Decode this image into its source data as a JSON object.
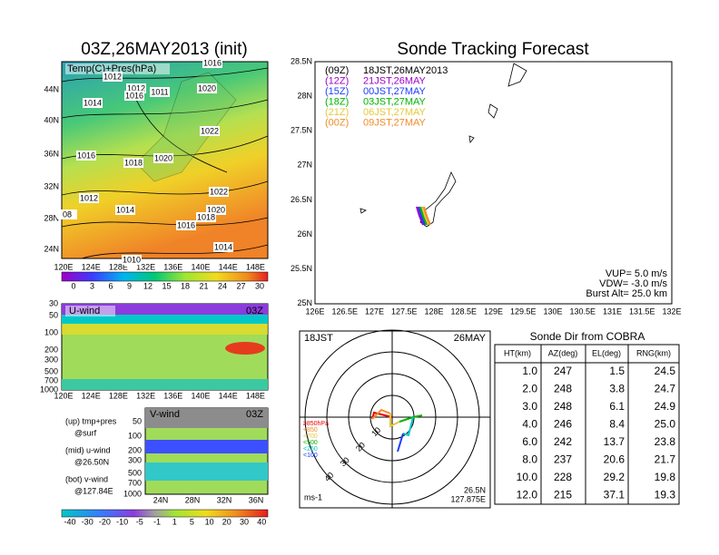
{
  "left": {
    "title": "03Z,26MAY2013 (init)",
    "overlay": "Temp(C)+Pres(hPa)",
    "lat_labels": [
      "44N",
      "40N",
      "36N",
      "32N",
      "28N",
      "24N"
    ],
    "lon_labels": [
      "120E",
      "124E",
      "128E",
      "132E",
      "136E",
      "140E",
      "144E",
      "148E"
    ],
    "colorbar": [
      "0",
      "3",
      "6",
      "9",
      "12",
      "15",
      "18",
      "21",
      "24",
      "27",
      "30"
    ],
    "isobars": [
      "1016",
      "1012",
      "1012",
      "1011",
      "1016",
      "1020",
      "1014",
      "1022",
      "1016",
      "1018",
      "1020",
      "1012",
      "1022",
      "1020",
      "1014",
      "1018",
      "1016",
      "08",
      "1014",
      "1010"
    ]
  },
  "u_wind": {
    "name": "U-wind",
    "time": "03Z",
    "levels": [
      "30",
      "50",
      "100",
      "200",
      "300",
      "500",
      "700",
      "1000"
    ],
    "lon_labels": [
      "120E",
      "124E",
      "128E",
      "132E",
      "136E",
      "140E",
      "144E",
      "148E"
    ]
  },
  "v_wind": {
    "name": "V-wind",
    "time": "03Z",
    "levels": [
      "50",
      "100",
      "200",
      "300",
      "500",
      "700",
      "1000"
    ],
    "lat_labels": [
      "24N",
      "28N",
      "32N",
      "36N"
    ]
  },
  "notes": [
    "(up) tmp+pres",
    "@surf",
    "(mid) u-wind",
    "@26.50N",
    "(bot) v-wind",
    "@127.84E"
  ],
  "wind_colorbar": [
    "-40",
    "-30",
    "-20",
    "-10",
    "-5",
    "-1",
    "1",
    "5",
    "10",
    "20",
    "30",
    "40"
  ],
  "tracking": {
    "title": "Sonde Tracking Forecast",
    "lat_labels": [
      "28.5N",
      "28N",
      "27.5N",
      "27N",
      "26.5N",
      "26N",
      "25.5N",
      "25N"
    ],
    "lon_labels": [
      "126E",
      "126.5E",
      "127E",
      "127.5E",
      "128E",
      "128.5E",
      "129E",
      "129.5E",
      "130E",
      "130.5E",
      "131E",
      "131.5E",
      "132E"
    ],
    "legend": [
      {
        "code": "(09Z)",
        "text": "18JST,26MAY2013",
        "color": "#000000"
      },
      {
        "code": "(12Z)",
        "text": "21JST,26MAY",
        "color": "#a000c8"
      },
      {
        "code": "(15Z)",
        "text": "00JST,27MAY",
        "color": "#1e3cff"
      },
      {
        "code": "(18Z)",
        "text": "03JST,27MAY",
        "color": "#00b400"
      },
      {
        "code": "(21Z)",
        "text": "06JST,27MAY",
        "color": "#e6c83c"
      },
      {
        "code": "(00Z)",
        "text": "09JST,27MAY",
        "color": "#f08c28"
      }
    ],
    "info": [
      "VUP=  5.0 m/s",
      "VDW= -3.0 m/s",
      "Burst Alt= 25.0 km"
    ]
  },
  "polar": {
    "time": "18JST",
    "date": "26MAY",
    "levels": [
      {
        "label": "≥850hPa",
        "color": "#e60000"
      },
      {
        "label": "<850",
        "color": "#f08c28"
      },
      {
        "label": "<700",
        "color": "#e6c83c"
      },
      {
        "label": "<500",
        "color": "#00b400"
      },
      {
        "label": "<250",
        "color": "#00c8c8"
      },
      {
        "label": "<100",
        "color": "#1e3cff"
      }
    ],
    "rings": [
      "10",
      "20",
      "30",
      "40"
    ],
    "unit": "ms-1",
    "lat": "26.5N",
    "lon": "127.875E"
  },
  "table": {
    "title": "Sonde Dir from COBRA",
    "headers": [
      "HT(km)",
      "AZ(deg)",
      "EL(deg)",
      "RNG(km)"
    ],
    "rows": [
      [
        "1.0",
        "247",
        "1.5",
        "24.5"
      ],
      [
        "2.0",
        "248",
        "3.8",
        "24.7"
      ],
      [
        "3.0",
        "248",
        "6.1",
        "24.9"
      ],
      [
        "4.0",
        "246",
        "8.4",
        "25.0"
      ],
      [
        "6.0",
        "242",
        "13.7",
        "23.8"
      ],
      [
        "8.0",
        "237",
        "20.6",
        "21.7"
      ],
      [
        "10.0",
        "228",
        "29.2",
        "19.8"
      ],
      [
        "12.0",
        "215",
        "37.1",
        "19.3"
      ]
    ]
  }
}
